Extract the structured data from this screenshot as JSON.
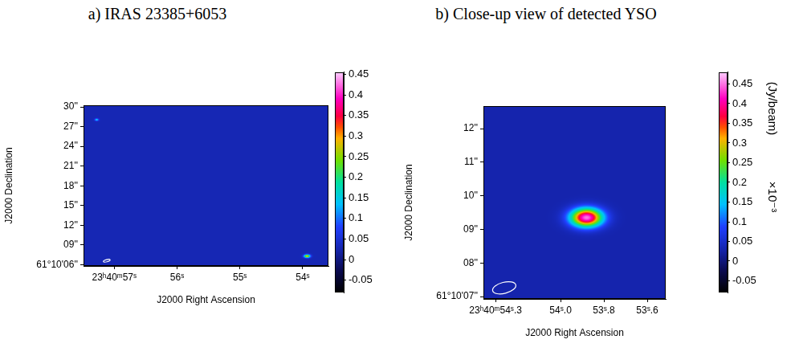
{
  "chart_data": [
    {
      "type": "heatmap",
      "title": "a) IRAS 23385+6053",
      "x_label": "J2000 Right Ascension",
      "y_label": "J2000 Declination",
      "xlim": [
        57.49,
        53.59
      ],
      "xticks": [
        {
          "value": 57,
          "label": "23ʰ40ᵐ57ˢ"
        },
        {
          "value": 56,
          "label": "56ˢ"
        },
        {
          "value": 55,
          "label": "55ˢ"
        },
        {
          "value": 54,
          "label": "54ˢ"
        }
      ],
      "ylim": [
        5.8,
        30.25
      ],
      "yticks": [
        {
          "value": 6,
          "label": "61°10'06''"
        },
        {
          "value": 9,
          "label": "09''"
        },
        {
          "value": 12,
          "label": "12''"
        },
        {
          "value": 15,
          "label": "15''"
        },
        {
          "value": 18,
          "label": "18''"
        },
        {
          "value": 21,
          "label": "21''"
        },
        {
          "value": 24,
          "label": "24''"
        },
        {
          "value": 27,
          "label": "27''"
        },
        {
          "value": 30,
          "label": "30''"
        }
      ],
      "grid": false,
      "background": 0.03,
      "sources": [
        {
          "ra": 53.93,
          "dec": 7.3,
          "peak": 0.3,
          "ra_width": 0.08,
          "dec_width": 0.4
        },
        {
          "ra": 57.28,
          "dec": 28.05,
          "peak": 0.15,
          "ra_width": 0.05,
          "dec_width": 0.3
        }
      ],
      "beam": {
        "ra": 57.12,
        "dec": 6.6,
        "ra_width": 0.11,
        "dec_width": 0.33
      },
      "colorbar": {
        "range": [
          -0.08,
          0.455
        ],
        "ticks": [
          -0.05,
          0,
          0.05,
          0.1,
          0.15,
          0.2,
          0.25,
          0.3,
          0.35,
          0.4,
          0.45
        ]
      }
    },
    {
      "type": "heatmap",
      "title": "b) Close-up view of detected YSO",
      "x_label": "J2000 Right Ascension",
      "y_label": "J2000 Declination",
      "xlim": [
        54.356,
        53.515
      ],
      "xticks": [
        {
          "value": 54.3,
          "label": "23ʰ40ᵐ54ˢ.3"
        },
        {
          "value": 54.0,
          "label": "54ˢ.0"
        },
        {
          "value": 53.8,
          "label": "53ˢ.8"
        },
        {
          "value": 53.6,
          "label": "53ˢ.6"
        }
      ],
      "ylim": [
        6.93,
        12.67
      ],
      "yticks": [
        {
          "value": 7,
          "label": "61°10'07''"
        },
        {
          "value": 8,
          "label": "08''"
        },
        {
          "value": 9,
          "label": "09''"
        },
        {
          "value": 10,
          "label": "10''"
        },
        {
          "value": 11,
          "label": "11''"
        },
        {
          "value": 12,
          "label": "12''"
        }
      ],
      "grid": false,
      "background": 0.03,
      "sources": [
        {
          "ra": 53.88,
          "dec": 9.35,
          "peak": 0.45,
          "ra_width": 0.12,
          "dec_width": 0.45
        }
      ],
      "beam": {
        "ra": 54.26,
        "dec": 7.26,
        "ra_width": 0.11,
        "dec_width": 0.33
      },
      "colorbar": {
        "range": [
          -0.08,
          0.48
        ],
        "ticks": [
          -0.05,
          0,
          0.05,
          0.1,
          0.15,
          0.2,
          0.25,
          0.3,
          0.35,
          0.4,
          0.45
        ],
        "label": "(Jy/beam)",
        "scale_label": "×10⁻³"
      }
    }
  ]
}
